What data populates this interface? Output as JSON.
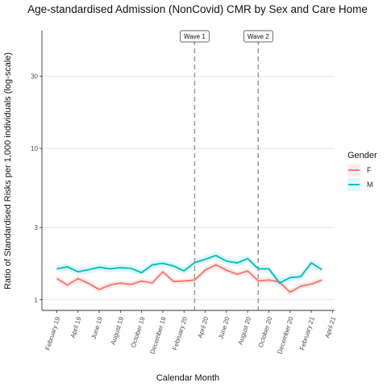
{
  "chart_data": {
    "type": "line",
    "title": "Age-standardised Admission (NonCovid) CMR by Sex and Care Home",
    "xlabel": "Calendar Month",
    "ylabel": "Ratio of Standardised Risks per 1,000 individuals (log-scale)",
    "y_scale": "log",
    "ylim": [
      0.85,
      60
    ],
    "y_ticks": [
      1,
      3,
      10,
      30
    ],
    "y_tick_labels": [
      "1",
      "3",
      "10",
      "30"
    ],
    "grid": true,
    "x_ticks": [
      "2019-02",
      "2019-04",
      "2019-06",
      "2019-08",
      "2019-10",
      "2019-12",
      "2020-02",
      "2020-04",
      "2020-06",
      "2020-08",
      "2020-10",
      "2020-12",
      "2021-02",
      "2021-04"
    ],
    "x_tick_labels": [
      "February 19",
      "April 19",
      "June 19",
      "August 19",
      "October 19",
      "December 19",
      "February 20",
      "April 20",
      "June 20",
      "August 20",
      "October 20",
      "December 20",
      "February 21",
      "April 21"
    ],
    "x": [
      "2019-02",
      "2019-03",
      "2019-04",
      "2019-05",
      "2019-06",
      "2019-07",
      "2019-08",
      "2019-09",
      "2019-10",
      "2019-11",
      "2019-12",
      "2020-01",
      "2020-02",
      "2020-03",
      "2020-04",
      "2020-05",
      "2020-06",
      "2020-07",
      "2020-08",
      "2020-09",
      "2020-10",
      "2020-11",
      "2020-12",
      "2021-01",
      "2021-02",
      "2021-03"
    ],
    "series": [
      {
        "name": "F",
        "color": "#F8766D",
        "values": [
          1.38,
          1.25,
          1.38,
          1.28,
          1.17,
          1.25,
          1.29,
          1.26,
          1.33,
          1.29,
          1.53,
          1.32,
          1.33,
          1.35,
          1.57,
          1.7,
          1.57,
          1.47,
          1.55,
          1.33,
          1.35,
          1.31,
          1.12,
          1.23,
          1.27,
          1.35
        ],
        "ci_half_width": [
          0.07,
          0.06,
          0.07,
          0.06,
          0.06,
          0.06,
          0.06,
          0.06,
          0.06,
          0.06,
          0.07,
          0.06,
          0.06,
          0.06,
          0.08,
          0.09,
          0.08,
          0.07,
          0.08,
          0.07,
          0.07,
          0.07,
          0.06,
          0.06,
          0.06,
          0.07
        ]
      },
      {
        "name": "M",
        "color": "#00BFC4",
        "values": [
          1.6,
          1.65,
          1.53,
          1.58,
          1.64,
          1.6,
          1.63,
          1.61,
          1.51,
          1.7,
          1.74,
          1.67,
          1.55,
          1.76,
          1.85,
          1.96,
          1.8,
          1.75,
          1.87,
          1.6,
          1.6,
          1.29,
          1.4,
          1.42,
          1.75,
          1.58
        ],
        "ci_half_width": [
          0.09,
          0.09,
          0.08,
          0.09,
          0.09,
          0.09,
          0.09,
          0.09,
          0.08,
          0.09,
          0.09,
          0.09,
          0.09,
          0.1,
          0.1,
          0.11,
          0.1,
          0.1,
          0.1,
          0.09,
          0.09,
          0.08,
          0.08,
          0.08,
          0.1,
          0.09
        ]
      }
    ],
    "annotations": [
      {
        "label": "Wave 1",
        "x": "2020-03",
        "style": "dashed vertical line"
      },
      {
        "label": "Wave 2",
        "x": "2020-09",
        "style": "dashed vertical line"
      }
    ],
    "legend": {
      "title": "Gender",
      "placement": "right",
      "entries": [
        "F",
        "M"
      ]
    }
  }
}
